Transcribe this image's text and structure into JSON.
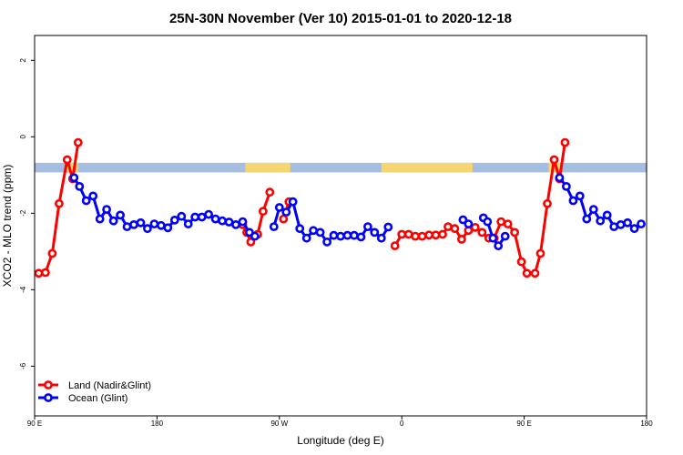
{
  "chart_data": {
    "type": "line",
    "title": "25N-30N November (Ver 10)   2015-01-01 to 2020-12-18",
    "xlabel": "Longitude (deg E)",
    "ylabel": "XCO2 - MLO trend (ppm)",
    "xlim": [
      90,
      540
    ],
    "ylim": [
      -7.3,
      2.65
    ],
    "xticks": [
      {
        "value": 90,
        "label": "90 E"
      },
      {
        "value": 180,
        "label": "180"
      },
      {
        "value": 270,
        "label": "90 W"
      },
      {
        "value": 360,
        "label": "0"
      },
      {
        "value": 450,
        "label": "90 E"
      },
      {
        "value": 540,
        "label": "180"
      }
    ],
    "yticks": [
      {
        "value": 2,
        "label": "2"
      },
      {
        "value": 0,
        "label": "0"
      },
      {
        "value": -2,
        "label": "-2"
      },
      {
        "value": -4,
        "label": "-4"
      },
      {
        "value": -6,
        "label": "-6"
      }
    ],
    "land_mask_band": {
      "y_range": [
        -0.93,
        -0.68
      ],
      "ocean_color": "#a5bde0",
      "land_color": "#f5d670",
      "land_segments": [
        [
          113,
          122
        ],
        [
          245,
          278
        ],
        [
          345,
          412
        ],
        [
          468,
          477
        ]
      ]
    },
    "series": [
      {
        "name": "Land (Nadir&Glint)",
        "color": "#ff0000",
        "segments": [
          [
            [
              93,
              -3.57
            ],
            [
              98,
              -3.55
            ],
            [
              103,
              -3.05
            ],
            [
              108,
              -1.75
            ],
            [
              114,
              -0.6
            ],
            [
              118,
              -1.1
            ],
            [
              122,
              -0.15
            ]
          ],
          [
            [
              243,
              -2.3
            ],
            [
              246,
              -2.5
            ],
            [
              249,
              -2.75
            ],
            [
              254,
              -2.55
            ],
            [
              258,
              -1.95
            ],
            [
              263,
              -1.45
            ]
          ],
          [
            [
              273,
              -2.15
            ],
            [
              277,
              -1.7
            ]
          ],
          [
            [
              355,
              -2.85
            ],
            [
              360,
              -2.55
            ],
            [
              365,
              -2.55
            ],
            [
              370,
              -2.6
            ],
            [
              375,
              -2.6
            ],
            [
              380,
              -2.57
            ],
            [
              385,
              -2.57
            ],
            [
              390,
              -2.55
            ],
            [
              394,
              -2.35
            ],
            [
              399,
              -2.4
            ],
            [
              404,
              -2.68
            ],
            [
              409,
              -2.45
            ],
            [
              414,
              -2.37
            ],
            [
              419,
              -2.5
            ],
            [
              424,
              -2.65
            ]
          ],
          [
            [
              428,
              -2.65
            ],
            [
              433,
              -2.22
            ],
            [
              438,
              -2.28
            ],
            [
              443,
              -2.5
            ],
            [
              448,
              -3.27
            ],
            [
              452,
              -3.57
            ],
            [
              458,
              -3.57
            ],
            [
              462,
              -3.05
            ],
            [
              467,
              -1.75
            ],
            [
              472,
              -0.6
            ],
            [
              476,
              -1.1
            ],
            [
              480,
              -0.15
            ]
          ]
        ]
      },
      {
        "name": "Ocean (Glint)",
        "color": "#0000ff",
        "segments": [
          [
            [
              119,
              -1.07
            ],
            [
              123,
              -1.3
            ],
            [
              128,
              -1.67
            ],
            [
              133,
              -1.55
            ],
            [
              138,
              -2.15
            ],
            [
              143,
              -1.9
            ],
            [
              148,
              -2.2
            ],
            [
              153,
              -2.05
            ],
            [
              158,
              -2.35
            ],
            [
              163,
              -2.3
            ],
            [
              168,
              -2.25
            ],
            [
              173,
              -2.4
            ],
            [
              178,
              -2.28
            ],
            [
              183,
              -2.32
            ],
            [
              188,
              -2.38
            ],
            [
              193,
              -2.18
            ],
            [
              198,
              -2.08
            ],
            [
              203,
              -2.28
            ],
            [
              208,
              -2.1
            ],
            [
              213,
              -2.1
            ],
            [
              218,
              -2.03
            ],
            [
              223,
              -2.15
            ],
            [
              228,
              -2.2
            ],
            [
              233,
              -2.23
            ],
            [
              238,
              -2.3
            ],
            [
              243,
              -2.22
            ],
            [
              248,
              -2.5
            ],
            [
              252,
              -2.6
            ]
          ],
          [
            [
              266,
              -2.35
            ],
            [
              270,
              -1.85
            ],
            [
              275,
              -1.97
            ],
            [
              280,
              -1.7
            ],
            [
              285,
              -2.4
            ],
            [
              290,
              -2.65
            ],
            [
              295,
              -2.45
            ],
            [
              300,
              -2.5
            ],
            [
              305,
              -2.75
            ],
            [
              310,
              -2.58
            ],
            [
              315,
              -2.6
            ],
            [
              320,
              -2.58
            ],
            [
              325,
              -2.58
            ],
            [
              330,
              -2.62
            ],
            [
              335,
              -2.35
            ],
            [
              340,
              -2.5
            ],
            [
              345,
              -2.65
            ],
            [
              350,
              -2.36
            ]
          ],
          [
            [
              405,
              -2.17
            ],
            [
              409,
              -2.28
            ]
          ],
          [
            [
              420,
              -2.12
            ],
            [
              423,
              -2.22
            ],
            [
              427,
              -2.65
            ],
            [
              431,
              -2.85
            ],
            [
              436,
              -2.6
            ]
          ],
          [
            [
              476,
              -1.07
            ],
            [
              481,
              -1.3
            ],
            [
              486,
              -1.67
            ],
            [
              491,
              -1.55
            ],
            [
              496,
              -2.15
            ],
            [
              501,
              -1.9
            ],
            [
              506,
              -2.2
            ],
            [
              511,
              -2.05
            ],
            [
              516,
              -2.35
            ],
            [
              521,
              -2.3
            ],
            [
              526,
              -2.25
            ],
            [
              531,
              -2.4
            ],
            [
              536,
              -2.28
            ]
          ]
        ]
      }
    ],
    "legend_position": "bottom-left"
  }
}
